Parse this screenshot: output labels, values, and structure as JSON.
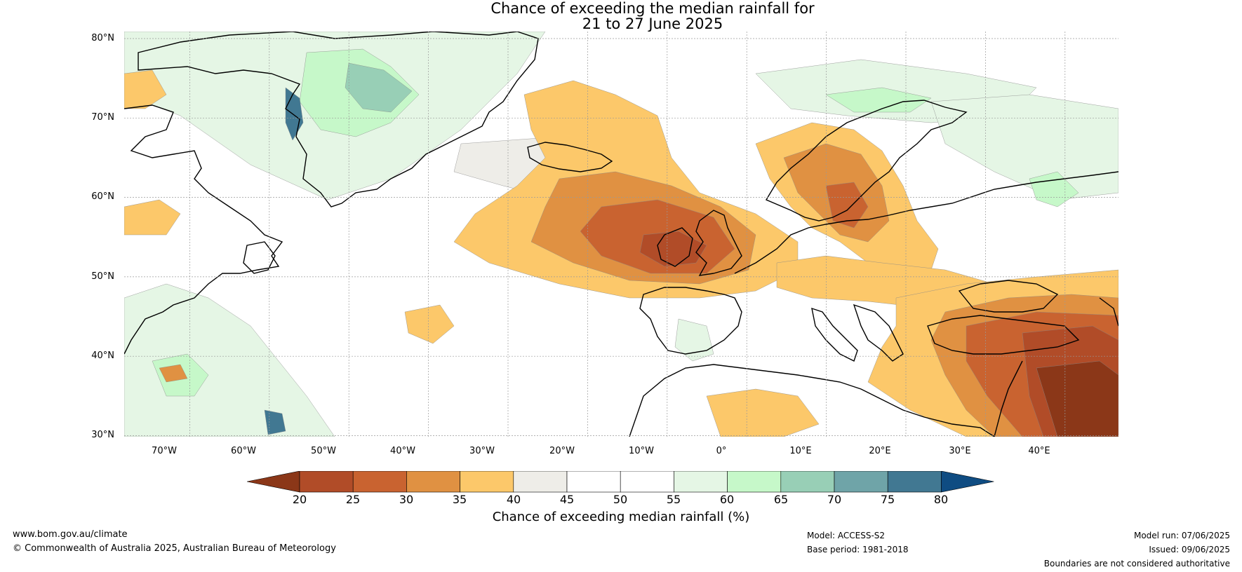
{
  "title": {
    "line1": "Chance of exceeding the median rainfall for",
    "line2": "21 to 27 June 2025"
  },
  "map": {
    "lat_labels": [
      "80°N",
      "70°N",
      "60°N",
      "50°N",
      "40°N",
      "30°N"
    ],
    "lon_labels": [
      "70°W",
      "60°W",
      "50°W",
      "40°W",
      "30°W",
      "20°W",
      "10°W",
      "0°",
      "10°E",
      "20°E",
      "30°E",
      "40°E"
    ],
    "colors": {
      "c20": "#8b3718",
      "c25": "#b14c28",
      "c30": "#c96330",
      "c35": "#e09142",
      "c40": "#fcc86a",
      "c45": "#eeede8",
      "c50": "#ffffff",
      "c55": "#ffffff",
      "c60": "#e5f6e5",
      "c65": "#c6f8c9",
      "c70": "#98cfb6",
      "c75": "#6fa4a8",
      "c80": "#417892",
      "c85": "#0f4c82"
    }
  },
  "colorbar": {
    "ticks": [
      "20",
      "25",
      "30",
      "35",
      "40",
      "45",
      "50",
      "55",
      "60",
      "65",
      "70",
      "75",
      "80"
    ],
    "label": "Chance of exceeding median rainfall (%)"
  },
  "footer": {
    "url": "www.bom.gov.au/climate",
    "copyright": "© Commonwealth of Australia 2025, Australian Bureau of Meteorology",
    "model": "Model: ACCESS-S2",
    "base_period": "Base period: 1981-2018",
    "model_run": "Model run: 07/06/2025",
    "issued": "Issued: 09/06/2025",
    "disclaimer": "Boundaries are not considered authoritative"
  }
}
